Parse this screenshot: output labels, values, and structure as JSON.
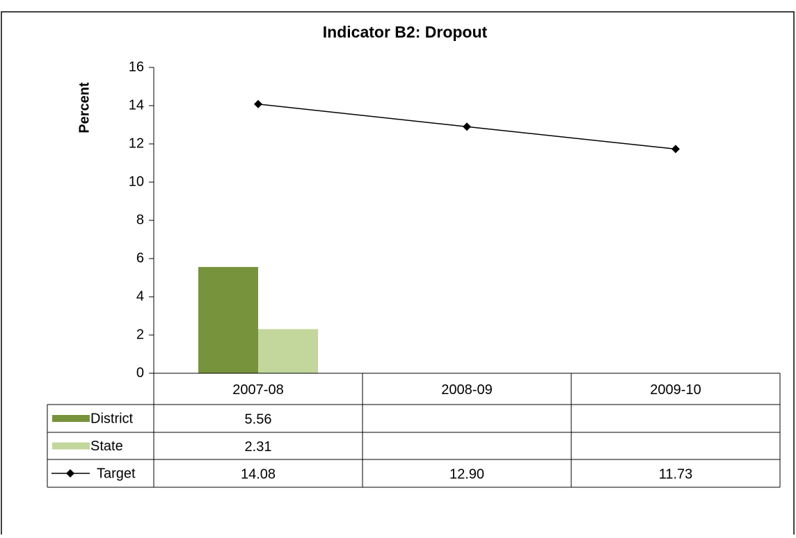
{
  "chart_data": {
    "type": "bar",
    "title": "Indicator B2: Dropout",
    "y_label": "Percent",
    "categories": [
      "2007-08",
      "2008-09",
      "2009-10"
    ],
    "series": [
      {
        "name": "District",
        "type": "bar",
        "color": "#77933c",
        "values": [
          5.56,
          null,
          null
        ]
      },
      {
        "name": "State",
        "type": "bar",
        "color": "#c3d69b",
        "values": [
          2.31,
          null,
          null
        ]
      },
      {
        "name": "Target",
        "type": "line",
        "color": "#000000",
        "values": [
          14.08,
          12.9,
          11.73
        ],
        "value_labels": [
          "14.08",
          "12.90",
          "11.73"
        ]
      }
    ],
    "ylim": [
      0,
      16
    ],
    "yticks": [
      0,
      2,
      4,
      6,
      8,
      10,
      12,
      14,
      16
    ],
    "grid": false,
    "data_table": true
  }
}
